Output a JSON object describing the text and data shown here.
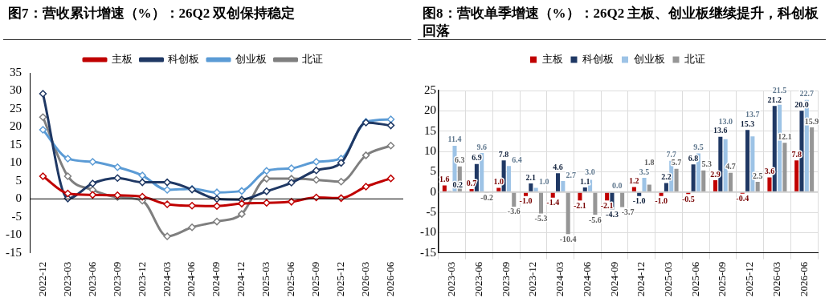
{
  "chart_data": [
    {
      "type": "line",
      "title": "图7：营收累计增速（%）：26Q2 双创保持稳定",
      "categories": [
        "2022-12",
        "2023-03",
        "2023-06",
        "2023-09",
        "2023-12",
        "2024-03",
        "2024-06",
        "2024-09",
        "2024-12",
        "2025-03",
        "2025-06",
        "2025-09",
        "2025-12",
        "2026-03",
        "2026-06"
      ],
      "series": [
        {
          "name": "主板",
          "color": "#c00000",
          "values": [
            6.3,
            1.5,
            1.1,
            1.0,
            0.6,
            -1.5,
            -1.9,
            -2.0,
            -1.3,
            -1.1,
            -0.8,
            0.4,
            0.2,
            3.4,
            5.7
          ]
        },
        {
          "name": "科创板",
          "color": "#1f3864",
          "values": [
            29.2,
            0.1,
            4.3,
            5.8,
            4.6,
            4.6,
            2.6,
            0.0,
            -0.2,
            2.1,
            4.5,
            7.9,
            10.0,
            21.2,
            20.4
          ]
        },
        {
          "name": "创业板",
          "color": "#5b9bd5",
          "values": [
            19.2,
            11.2,
            10.3,
            8.8,
            6.5,
            2.5,
            2.8,
            1.8,
            2.2,
            7.8,
            8.5,
            10.3,
            11.2,
            21.4,
            22.1
          ]
        },
        {
          "name": "北证",
          "color": "#7f7f7f",
          "values": [
            22.7,
            6.3,
            2.5,
            0.5,
            -0.5,
            -10.4,
            -7.9,
            -6.3,
            -4.2,
            5.6,
            5.6,
            5.3,
            4.8,
            12.1,
            14.8
          ]
        }
      ],
      "ylim": [
        -15,
        35
      ],
      "yticks": [
        -15,
        -10,
        -5,
        0,
        5,
        10,
        15,
        20,
        25,
        30,
        35
      ],
      "legend": "top",
      "marker": "diamond",
      "line_style": "solid"
    },
    {
      "type": "bar",
      "title": "图8：营收单季增速（%）：26Q2 主板、创业板继续提升，科创板回落",
      "categories": [
        "2023-03",
        "2023-06",
        "2023-09",
        "2023-12",
        "2024-03",
        "2024-06",
        "2024-09",
        "2024-12",
        "2025-03",
        "2025-06",
        "2025-09",
        "2025-12",
        "2026-03",
        "2026-06"
      ],
      "series": [
        {
          "name": "主板",
          "color": "#c00000",
          "values": [
            1.6,
            0.7,
            1.0,
            -1.0,
            -1.4,
            -2.1,
            -2.1,
            1.2,
            -1.0,
            -0.5,
            2.9,
            -0.4,
            3.6,
            7.8
          ],
          "value_labels": [
            "1.6",
            "0.7",
            "1.0",
            "-1.0",
            "-1.4",
            "-2.1",
            "-2.1",
            "1.2",
            "-1.0",
            "-0.5",
            "2.9",
            "-0.4",
            "3.6",
            "7.8"
          ]
        },
        {
          "name": "科创板",
          "color": "#1f3864",
          "values": [
            0.2,
            6.9,
            7.8,
            2.1,
            4.6,
            1.1,
            -4.3,
            -1.0,
            2.2,
            6.8,
            13.6,
            15.3,
            21.2,
            20.0
          ],
          "value_labels": [
            "0.2",
            "6.9",
            "7.8",
            "2.1",
            "4.6",
            "1.1",
            "-4.3",
            "-1.0",
            "2.2",
            "6.8",
            "13.6",
            "15.3",
            "21.2",
            "20.0"
          ]
        },
        {
          "name": "创业板",
          "color": "#9dc3e6",
          "values": [
            11.4,
            9.6,
            6.4,
            1.0,
            2.7,
            3.0,
            0.0,
            3.5,
            7.7,
            9.5,
            13.0,
            13.7,
            21.5,
            22.7
          ],
          "value_labels": [
            "11.4",
            "9.6",
            "6.4",
            "1.0",
            "2.7",
            "3.0",
            "0.0",
            "3.5",
            "7.7",
            "9.5",
            "13.0",
            "13.7",
            "21.5",
            "22.7"
          ]
        },
        {
          "name": "北证",
          "color": "#969696",
          "values": [
            6.3,
            -0.2,
            -3.6,
            -5.3,
            -10.4,
            -5.6,
            -3.7,
            1.8,
            5.7,
            5.3,
            4.7,
            2.5,
            12.1,
            15.9
          ],
          "value_labels": [
            "6.3",
            "-0.2",
            "-3.6",
            "-5.3",
            "-10.4",
            "-5.6",
            "-3.7",
            "1.8",
            "5.7",
            "5.3",
            "4.7",
            "2.5",
            "12.1",
            "15.9"
          ]
        }
      ],
      "ylim": [
        -15,
        25
      ],
      "yticks": [
        -15,
        -10,
        -5,
        0,
        5,
        10,
        15,
        20,
        25
      ],
      "grid": true,
      "legend": "top",
      "data_labels": true
    }
  ]
}
